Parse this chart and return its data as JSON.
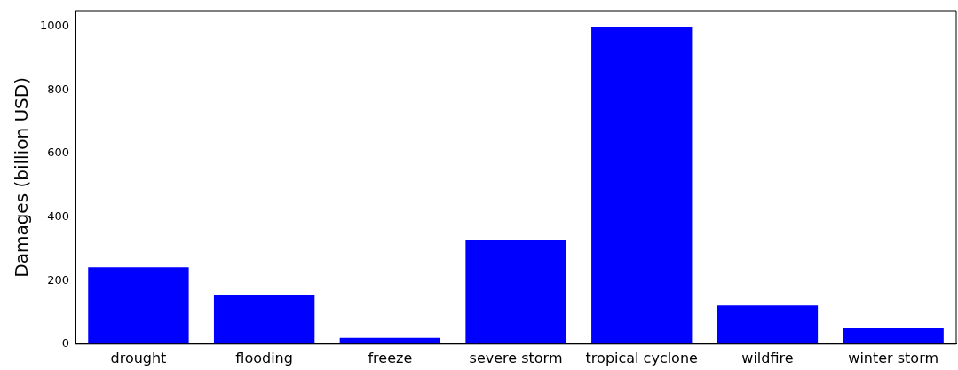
{
  "chart_data": {
    "type": "bar",
    "ylabel": "Damages (billion USD)",
    "categories": [
      "drought",
      "flooding",
      "freeze",
      "severe storm",
      "tropical cyclone",
      "wildfire",
      "winter storm"
    ],
    "values": [
      242,
      156,
      20,
      326,
      1000,
      122,
      50
    ],
    "color": "#0000ff",
    "ylim": [
      0,
      1050
    ],
    "yticks": [
      0,
      200,
      400,
      600,
      800,
      1000
    ],
    "grid": false,
    "legend": false
  }
}
